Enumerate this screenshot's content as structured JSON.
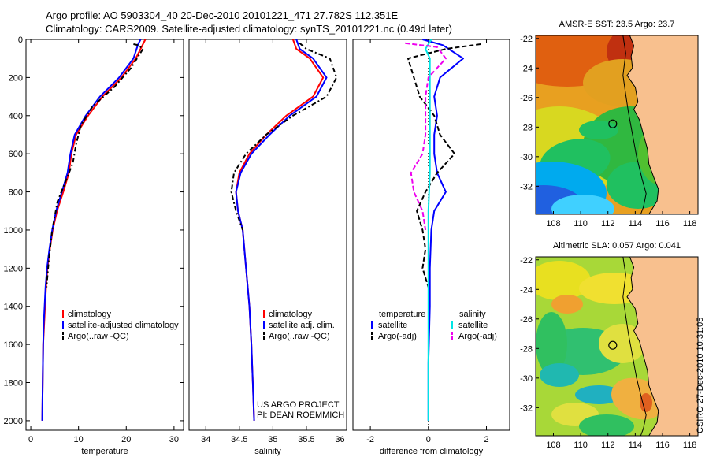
{
  "header": {
    "line1": "Argo profile: AO 5903304_40 20-Dec-2010 20101221_471 27.782S 112.351E",
    "line2": "Climatology: CARS2009. Satellite-adjusted climatology: synTS_20101221.nc (0.49d later)"
  },
  "side_label": "CSIRO 27-Dec-2010 10:31:05",
  "colors": {
    "clim": "#ff0000",
    "sat": "#0000ff",
    "argo": "#000000",
    "sat_cyan": "#00e5e5",
    "argo_mag": "#ee00ee",
    "land": "#f8c08e"
  },
  "chart_data": [
    {
      "type": "line",
      "id": "temperature",
      "xlabel": "temperature",
      "ylabel": "",
      "xlim": [
        -1,
        32
      ],
      "ylim": [
        0,
        2050
      ],
      "xticks": [
        0,
        10,
        20,
        30
      ],
      "yticks": [
        0,
        200,
        400,
        600,
        800,
        1000,
        1200,
        1400,
        1600,
        1800,
        2000
      ],
      "legend": [
        "climatology",
        "satellite-adjusted climatology",
        "Argo(..raw -QC)"
      ],
      "series": [
        {
          "name": "climatology",
          "color": "#ff0000",
          "dash": "",
          "x": [
            24,
            23.5,
            22,
            19,
            15,
            12,
            9.5,
            8.5,
            8,
            6.8,
            5.5,
            4.6,
            4,
            3.5,
            3.2,
            3,
            2.8,
            2.6,
            2.5,
            2.4
          ],
          "y": [
            0,
            25,
            100,
            200,
            300,
            400,
            500,
            600,
            700,
            800,
            900,
            1000,
            1100,
            1200,
            1300,
            1400,
            1500,
            1600,
            1800,
            2000
          ]
        },
        {
          "name": "satellite-adjusted climatology",
          "color": "#0000ff",
          "dash": "",
          "x": [
            23,
            22.5,
            21.5,
            18.5,
            14.5,
            11.5,
            9.2,
            8.3,
            7.7,
            6.5,
            5.3,
            4.5,
            3.9,
            3.4,
            3.1,
            2.9,
            2.7,
            2.6,
            2.5,
            2.4
          ],
          "y": [
            0,
            25,
            100,
            200,
            300,
            400,
            500,
            600,
            700,
            800,
            900,
            1000,
            1100,
            1200,
            1300,
            1400,
            1500,
            1600,
            1800,
            2000
          ]
        },
        {
          "name": "Argo(..raw -QC)",
          "color": "#000000",
          "dash": "6,3,2,3",
          "x": [
            21.5,
            22.5,
            23.5,
            21,
            17.5,
            13,
            10.5,
            9.5,
            8.8,
            7.2,
            5.6,
            4.5,
            3.8,
            3.3
          ],
          "y": [
            25,
            30,
            50,
            150,
            250,
            350,
            450,
            550,
            650,
            750,
            850,
            1000,
            1150,
            1300
          ]
        }
      ]
    },
    {
      "type": "line",
      "id": "salinity",
      "xlabel": "salinity",
      "ylabel": "",
      "xlim": [
        33.75,
        36.1
      ],
      "ylim": [
        0,
        2050
      ],
      "xticks": [
        34,
        34.5,
        35,
        35.5,
        36
      ],
      "yticks": [],
      "legend": [
        "climatology",
        "satellite adj. clim.",
        "Argo(..raw -QC)"
      ],
      "annotation": [
        "US ARGO PROJECT",
        "PI: DEAN ROEMMICH"
      ],
      "series": [
        {
          "name": "climatology",
          "color": "#ff0000",
          "dash": "",
          "x": [
            35.3,
            35.35,
            35.55,
            35.75,
            35.6,
            35.2,
            34.9,
            34.65,
            34.5,
            34.45,
            34.48,
            34.55,
            34.6,
            34.65,
            34.68,
            34.7,
            34.72
          ],
          "y": [
            0,
            50,
            100,
            200,
            300,
            400,
            500,
            600,
            700,
            800,
            900,
            1000,
            1200,
            1400,
            1600,
            1800,
            2000
          ]
        },
        {
          "name": "satellite adj. clim.",
          "color": "#0000ff",
          "dash": "",
          "x": [
            35.35,
            35.4,
            35.6,
            35.8,
            35.65,
            35.25,
            34.95,
            34.68,
            34.52,
            34.45,
            34.48,
            34.55,
            34.6,
            34.65,
            34.68,
            34.7,
            34.72
          ],
          "y": [
            0,
            50,
            100,
            200,
            300,
            400,
            500,
            600,
            700,
            800,
            900,
            1000,
            1200,
            1400,
            1600,
            1800,
            2000
          ]
        },
        {
          "name": "Argo(..raw -QC)",
          "color": "#000000",
          "dash": "6,3,2,3",
          "x": [
            35.4,
            35.5,
            35.85,
            35.95,
            35.8,
            35.3,
            34.9,
            34.6,
            34.42,
            34.38,
            34.45,
            34.55
          ],
          "y": [
            20,
            50,
            100,
            200,
            300,
            400,
            500,
            600,
            700,
            800,
            900,
            1000
          ]
        }
      ]
    },
    {
      "type": "line",
      "id": "difference",
      "xlabel": "difference from climatology",
      "ylabel": "",
      "xlim": [
        -2.6,
        2.8
      ],
      "ylim": [
        0,
        2050
      ],
      "xticks": [
        -2,
        0,
        2
      ],
      "yticks": [],
      "legend_titles": [
        "temperature",
        "salinity"
      ],
      "legend": [
        "satellite",
        "Argo(-adj)",
        "satellite",
        "Argo(-adj)"
      ],
      "series": [
        {
          "name": "temperature satellite",
          "color": "#0000ff",
          "dash": "",
          "x": [
            -0.2,
            0.5,
            1.2,
            0.4,
            0.2,
            0.3,
            0.2,
            0.2,
            0.3,
            0.6,
            0.2,
            0.1,
            0.05,
            0.05,
            0.0,
            0.0
          ],
          "y": [
            0,
            30,
            100,
            200,
            300,
            400,
            500,
            600,
            700,
            800,
            900,
            1000,
            1200,
            1400,
            1700,
            2000
          ]
        },
        {
          "name": "temperature Argo(-adj)",
          "color": "#000000",
          "dash": "6,3",
          "x": [
            1.8,
            0.6,
            -0.7,
            -0.5,
            -0.3,
            0.2,
            0.4,
            0.9,
            0.3,
            -0.1,
            -0.4,
            -0.2,
            -0.1,
            -0.2,
            0.0
          ],
          "y": [
            25,
            50,
            100,
            200,
            300,
            400,
            500,
            600,
            700,
            800,
            900,
            1000,
            1100,
            1200,
            1300
          ]
        },
        {
          "name": "salinity satellite",
          "color": "#00e5e5",
          "dash": "",
          "x": [
            0.1,
            -0.1,
            0.05,
            0.05,
            0.05,
            0.05,
            0.05,
            0.05,
            0.0,
            0.0,
            0.0,
            0.0
          ],
          "y": [
            0,
            50,
            100,
            200,
            300,
            400,
            500,
            700,
            900,
            1200,
            1600,
            2000
          ]
        },
        {
          "name": "salinity Argo(-adj)",
          "color": "#ee00ee",
          "dash": "6,3",
          "x": [
            -0.8,
            0.3,
            0.6,
            0.0,
            -0.1,
            -0.1,
            -0.1,
            -0.2,
            -0.6,
            -0.5,
            -0.2,
            -0.1
          ],
          "y": [
            20,
            40,
            100,
            200,
            300,
            400,
            500,
            600,
            700,
            800,
            900,
            1000
          ]
        }
      ]
    },
    {
      "type": "heatmap",
      "id": "sst-map",
      "title": "AMSR-E SST: 23.5 Argo: 23.7",
      "xlim": [
        106.7,
        118.6
      ],
      "ylim": [
        -33.9,
        -21.8
      ],
      "xticks": [
        108,
        110,
        112,
        114,
        116,
        118
      ],
      "yticks": [
        -22,
        -24,
        -26,
        -28,
        -30,
        -32
      ],
      "argo_position": [
        112.35,
        -27.78
      ]
    },
    {
      "type": "heatmap",
      "id": "sla-map",
      "title": "Altimetric SLA: 0.057 Argo: 0.041",
      "xlim": [
        106.7,
        118.6
      ],
      "ylim": [
        -33.9,
        -21.8
      ],
      "xticks": [
        108,
        110,
        112,
        114,
        116,
        118
      ],
      "yticks": [
        -22,
        -24,
        -26,
        -28,
        -30,
        -32
      ],
      "argo_position": [
        112.35,
        -27.78
      ]
    }
  ]
}
